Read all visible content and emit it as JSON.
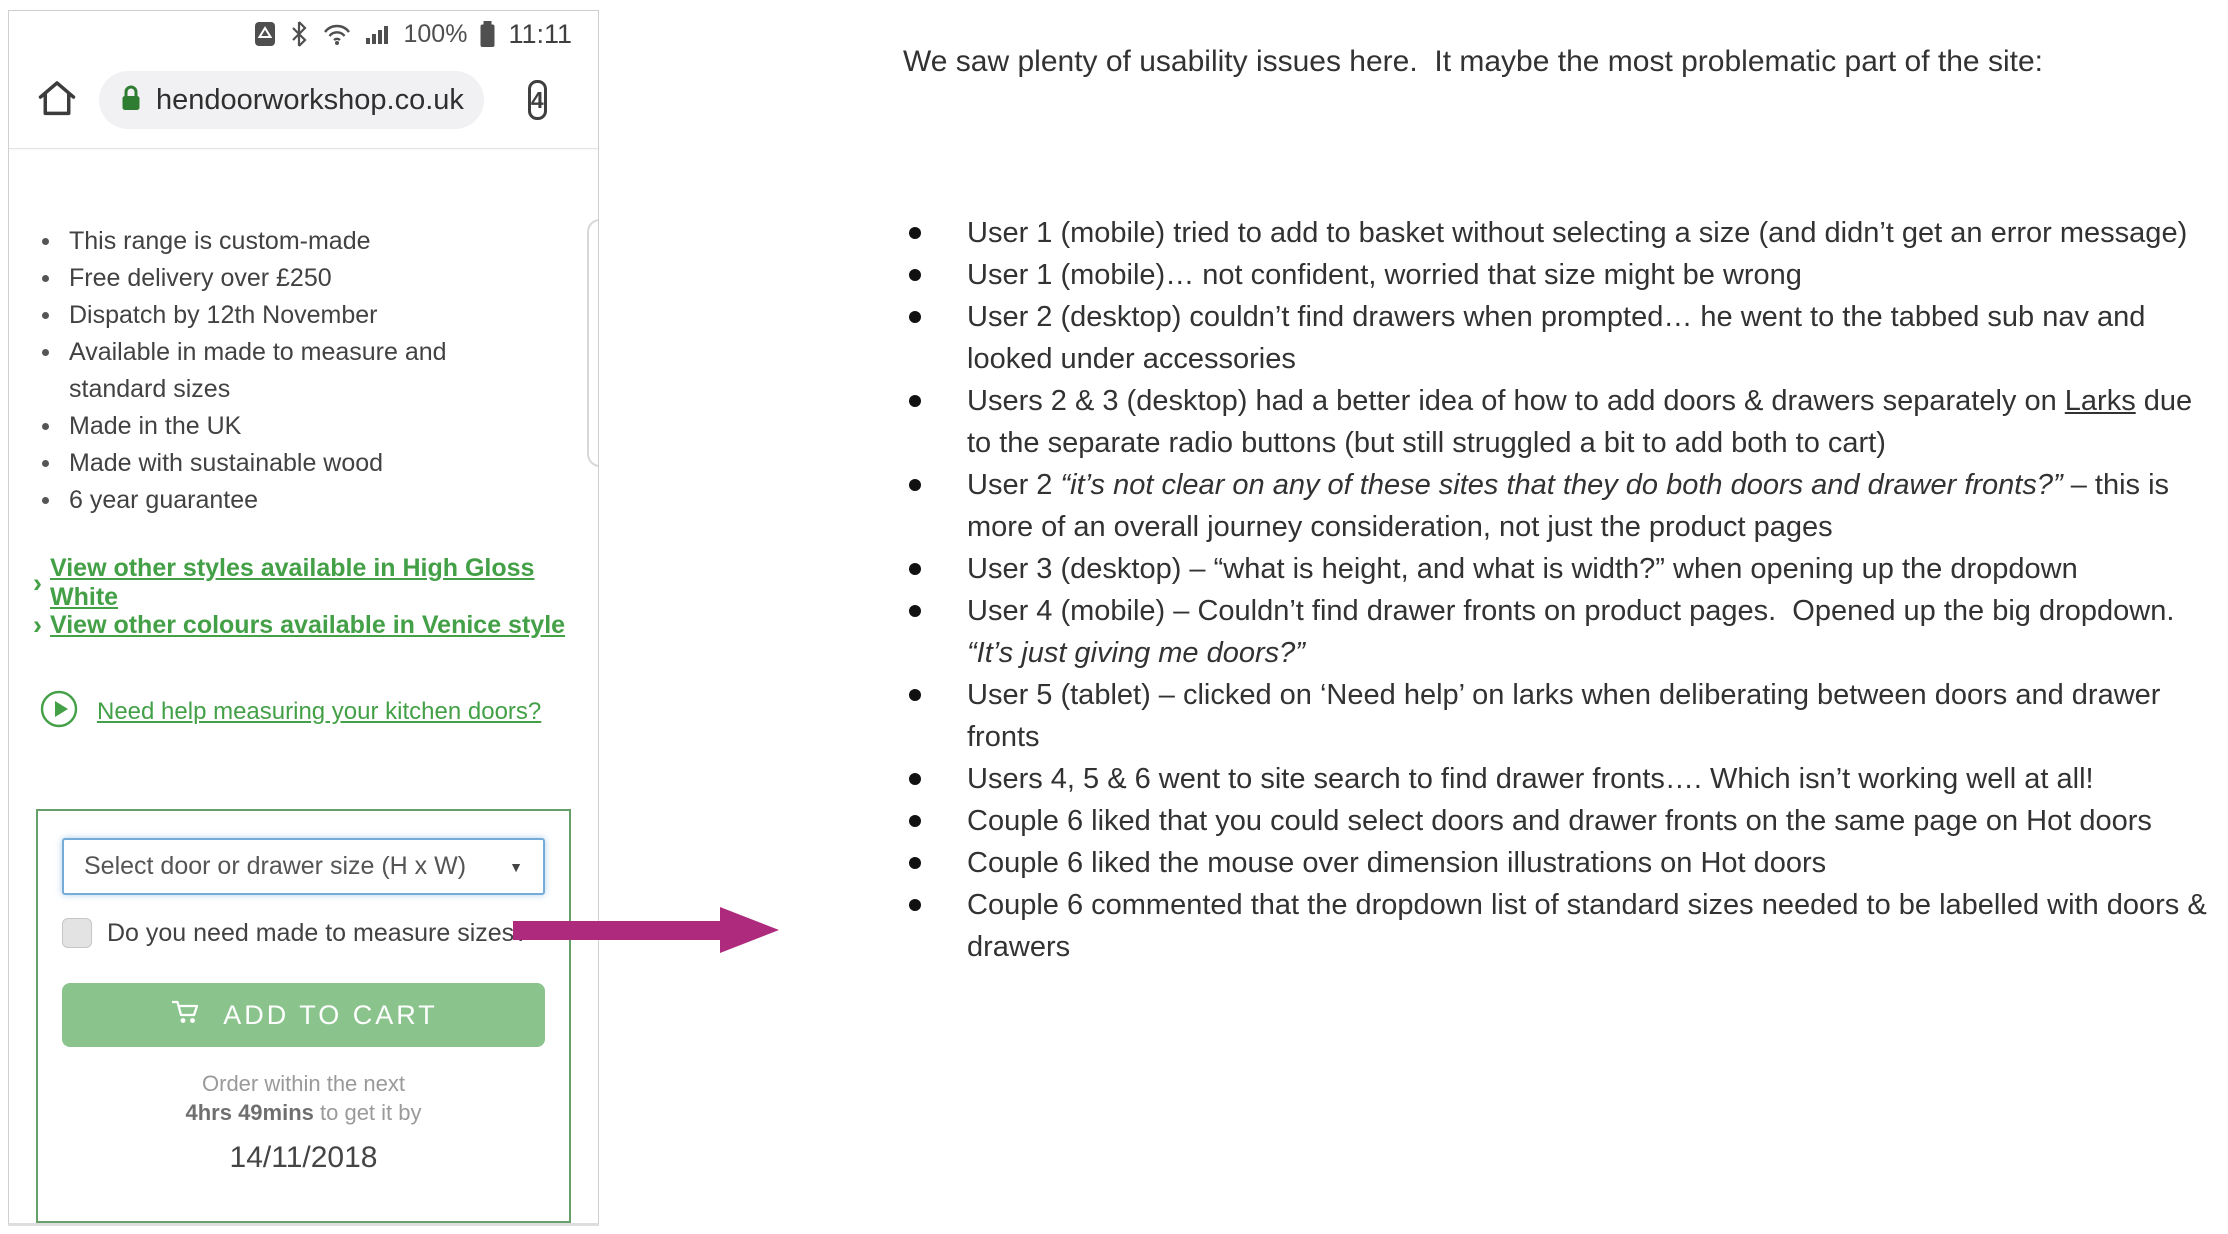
{
  "phone": {
    "status_bar": {
      "battery_pct": "100%",
      "time": "11:11"
    },
    "toolbar": {
      "url": "hendoorworkshop.co.uk",
      "tab_count": "4"
    },
    "features": [
      "This range is custom-made",
      "Free delivery over £250",
      "Dispatch by 12th November",
      "Available in made to measure and standard sizes",
      "Made in the UK",
      "Made with sustainable wood",
      "6 year guarantee"
    ],
    "links": {
      "styles": "View other styles available in High Gloss White",
      "colours": "View other colours available in Venice style",
      "help": "Need help measuring your kitchen doors?"
    },
    "purchase": {
      "select_label": "Select door or drawer size (H x W)",
      "checkbox_label": "Do you need made to measure sizes?",
      "button_label": "ADD TO CART",
      "order_prefix": "Order within the next",
      "order_countdown": "4hrs 49mins",
      "order_suffix": " to get it by",
      "date": "14/11/2018"
    }
  },
  "icons": {
    "chevron_right": "›",
    "caret_down": "▼",
    "kebab_menu": "⋮"
  },
  "notes": {
    "heading": "We saw plenty of usability issues here.  It maybe the most problematic part of the site:",
    "bullets": [
      [
        {
          "t": "User 1 (mobile) tried to add to basket without selecting a size (and didn’t get an error message)"
        }
      ],
      [
        {
          "t": "User 1 (mobile)… not confident, worried that size might be wrong"
        }
      ],
      [
        {
          "t": "User 2 (desktop) couldn’t find drawers when prompted… he went to the tabbed sub nav and looked under accessories"
        }
      ],
      [
        {
          "t": "Users 2 & 3 (desktop) had a better idea of how to add doors & drawers separately on "
        },
        {
          "t": "Larks",
          "s": "u"
        },
        {
          "t": " due to the separate radio buttons (but still struggled a bit to add both to cart)"
        }
      ],
      [
        {
          "t": "User 2 "
        },
        {
          "t": "“it’s not clear on any of these sites that they do both doors and drawer fronts?”",
          "s": "i"
        },
        {
          "t": " – this is more of an overall journey consideration, not just the product pages"
        }
      ],
      [
        {
          "t": "User 3 (desktop) – “what is height, and what is width?” when opening up the dropdown"
        }
      ],
      [
        {
          "t": "User 4 (mobile) – Couldn’t find drawer fronts on product pages.  Opened up the big dropdown.  "
        },
        {
          "t": "“It’s just giving me doors?”",
          "s": "i"
        }
      ],
      [
        {
          "t": "User 5 (tablet) – clicked on ‘Need help’ on larks when deliberating between doors and drawer fronts"
        }
      ],
      [
        {
          "t": "Users 4, 5 & 6 went to site search to find drawer fronts…. Which isn’t working well at all!"
        }
      ],
      [
        {
          "t": "Couple 6 liked that you could select doors and drawer fronts on the same page on Hot doors"
        }
      ],
      [
        {
          "t": "Couple 6 liked the mouse over dimension illustrations on Hot doors"
        }
      ],
      [
        {
          "t": "Couple 6 commented that the dropdown list of standard sizes needed to be labelled with doors & drawers"
        }
      ]
    ]
  },
  "colors": {
    "link-green": "#43a047",
    "lock-green": "#2e7d32",
    "panel-border-green": "#66a169",
    "button-green": "#8ac48c",
    "select-border-blue": "#74abd8",
    "arrow-magenta": "#ae2a7d",
    "notes-text": "#323232",
    "muted-gray": "#9a9a9a"
  }
}
